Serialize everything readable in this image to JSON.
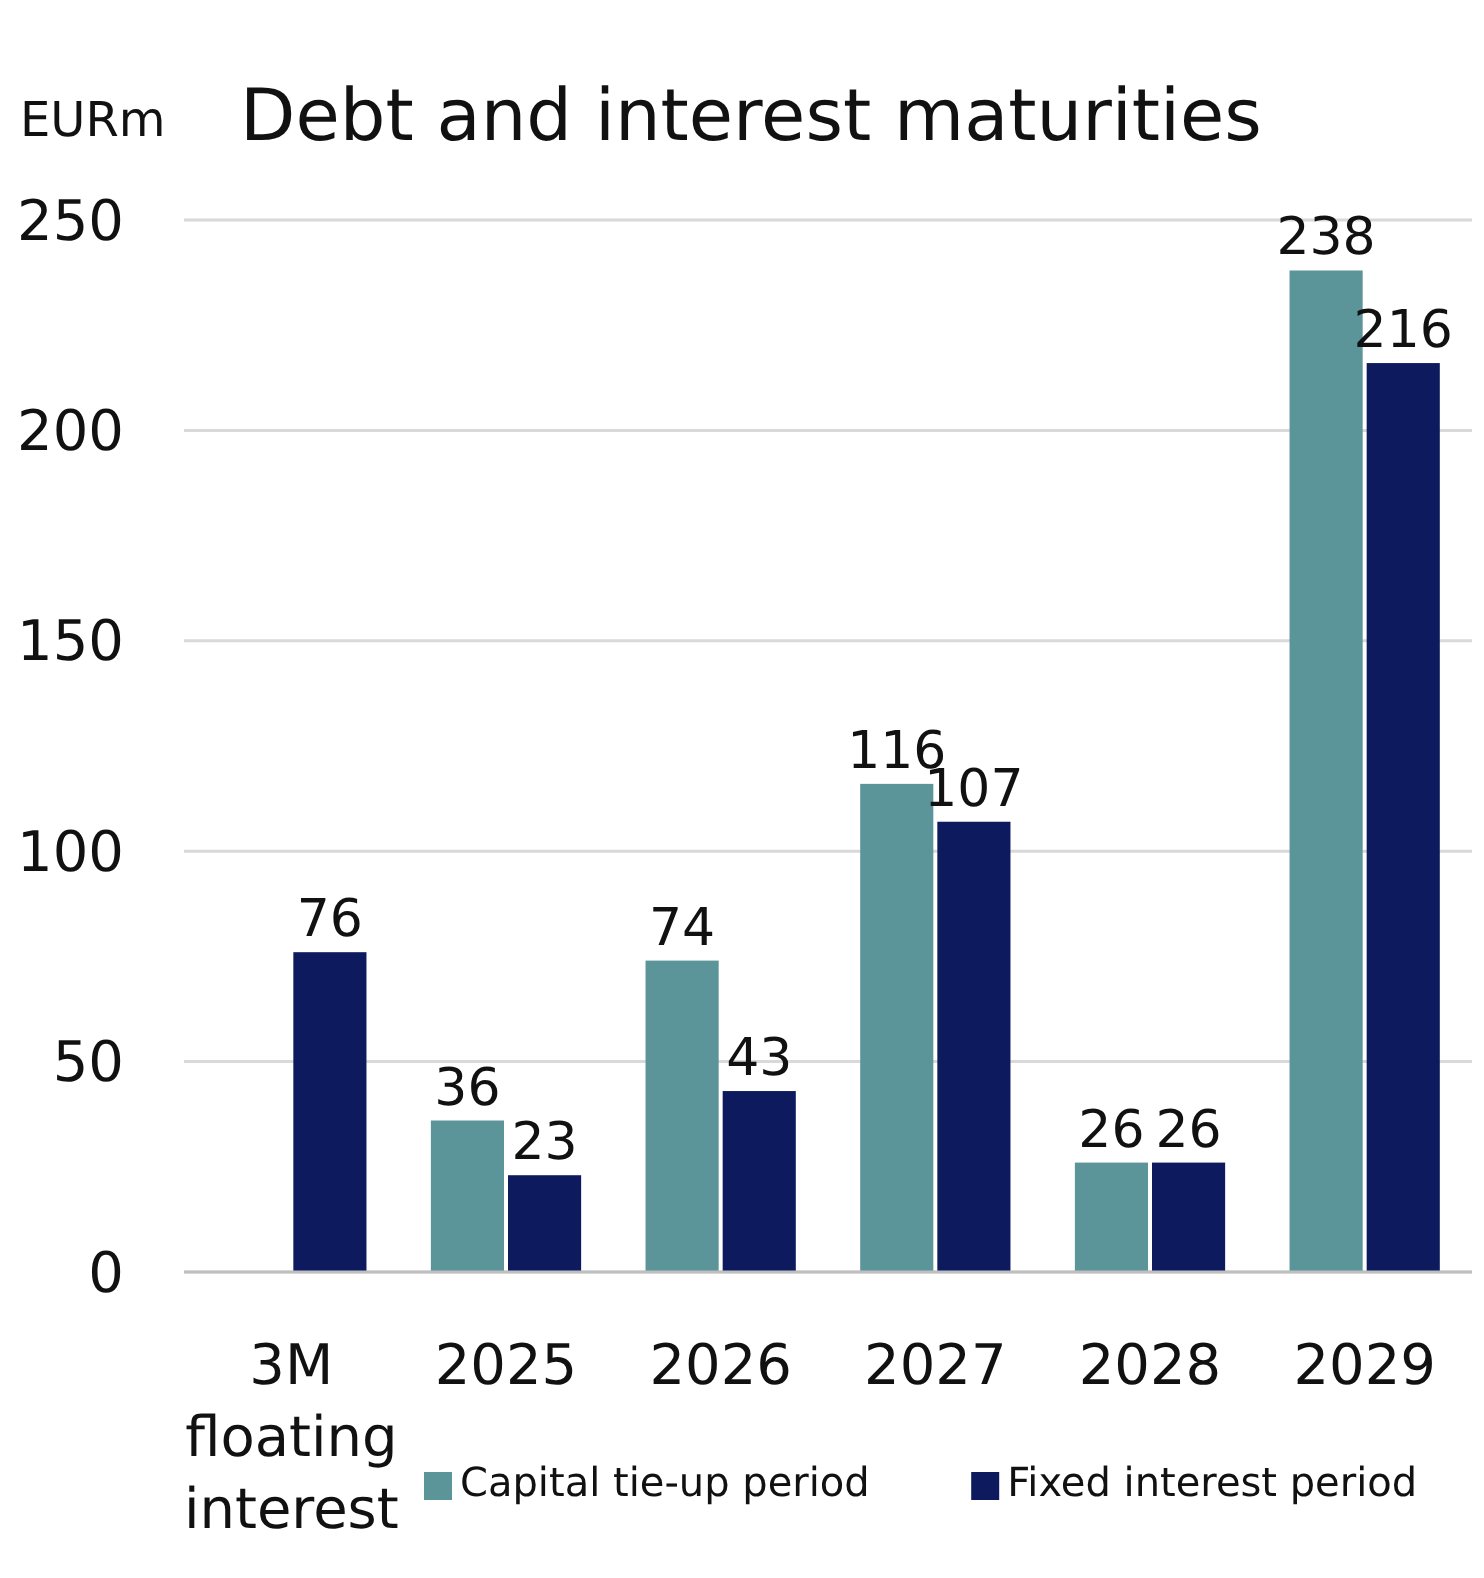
{
  "chart_data": {
    "type": "bar",
    "title": "Debt and interest maturities",
    "ylabel": "EURm",
    "categories": [
      "3M floating interest",
      "2025",
      "2026",
      "2027",
      "2028",
      "2029"
    ],
    "series": [
      {
        "name": "Capital tie-up period",
        "color": "#5b9499",
        "values": [
          null,
          36,
          74,
          116,
          26,
          238
        ]
      },
      {
        "name": "Fixed interest period",
        "color": "#0d1b5e",
        "values": [
          76,
          23,
          43,
          107,
          26,
          216
        ]
      }
    ],
    "ylim": [
      0,
      250
    ],
    "yticks": [
      0,
      50,
      100,
      150,
      200,
      250
    ],
    "grid": "y",
    "legend": "bottom",
    "data_labels": true
  }
}
